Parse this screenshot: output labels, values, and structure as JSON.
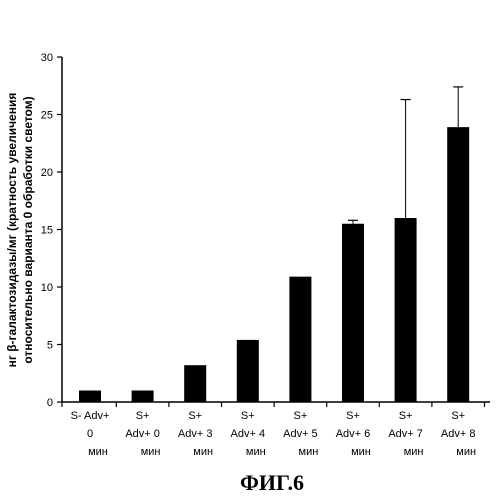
{
  "chart_data": {
    "type": "bar",
    "categories": [
      [
        "S- Adv+",
        "0",
        "мин"
      ],
      [
        "S+",
        "Adv+ 0",
        "мин"
      ],
      [
        "S+",
        "Adv+ 3",
        "мин"
      ],
      [
        "S+",
        "Adv+ 4",
        "мин"
      ],
      [
        "S+",
        "Adv+ 5",
        "мин"
      ],
      [
        "S+",
        "Adv+ 6",
        "мин"
      ],
      [
        "S+",
        "Adv+ 7",
        "мин"
      ],
      [
        "S+",
        "Adv+ 8",
        "мин"
      ]
    ],
    "values": [
      1.0,
      1.0,
      3.2,
      5.4,
      10.9,
      15.5,
      16.0,
      23.9
    ],
    "error_upper": [
      0,
      0,
      0,
      0,
      0,
      0.3,
      10.3,
      3.5
    ],
    "ylabel_lines": [
      "нг β-галактозидазы/мг (кратность увеличения",
      "относительно варианта 0 обработки светом)"
    ],
    "ylim": [
      0,
      30
    ],
    "yticks": [
      0,
      5,
      10,
      15,
      20,
      25,
      30
    ],
    "bar_color": "#000000",
    "grid": false,
    "figure_caption": "ФИГ.6"
  }
}
